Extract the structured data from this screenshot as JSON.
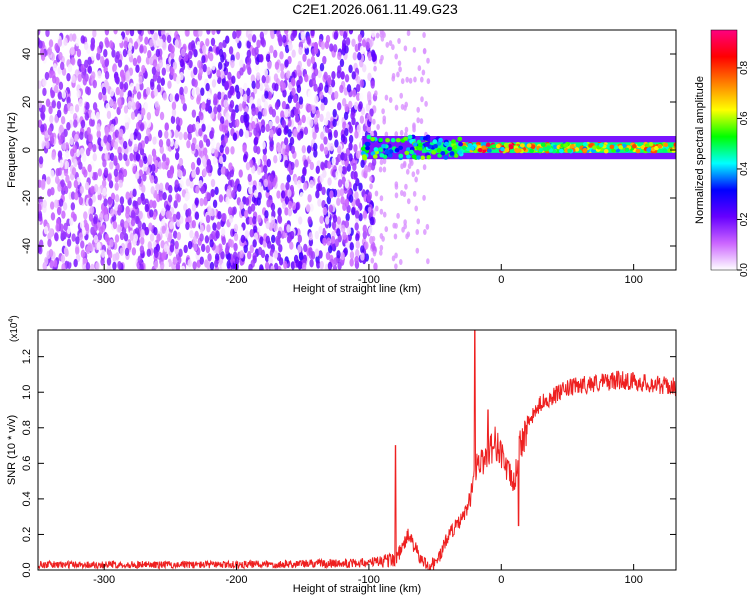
{
  "title": "C2E1.2026.061.11.49.G23",
  "chart_data": [
    {
      "type": "heatmap",
      "xlabel": "Height of straight line (km)",
      "ylabel": "Frequency (Hz)",
      "xlim": [
        -350,
        132
      ],
      "ylim": [
        -50,
        50
      ],
      "x_ticks": [
        -300,
        -200,
        -100,
        0,
        100
      ],
      "x_tick_labels": [
        "-300",
        "-200",
        "-100",
        "0",
        "100"
      ],
      "y_ticks": [
        -40,
        -20,
        0,
        20,
        40
      ],
      "y_tick_labels": [
        "-40",
        "-20",
        "0",
        "20",
        "40"
      ],
      "colorbar": {
        "label": "Normalized spectral amplitude",
        "range": [
          0,
          0.95
        ],
        "ticks": [
          0,
          0.2,
          0.4,
          0.6,
          0.8
        ],
        "tick_labels": [
          "0.0",
          "0.2",
          "0.4",
          "0.6",
          "0.8"
        ],
        "colors": [
          "#ffffff",
          "#cc66ff",
          "#6600ff",
          "#0000ff",
          "#00ffff",
          "#00ff00",
          "#ffff00",
          "#ff8000",
          "#ff0000",
          "#ff0080"
        ]
      },
      "features": {
        "noise_region_x": [
          -350,
          -100
        ],
        "signal_start_x": -105,
        "signal_center_freq": 1,
        "signal_band_halfwidth": 4
      }
    },
    {
      "type": "line",
      "xlabel": "Height of straight line (km)",
      "ylabel": "SNR (10 * v/v)",
      "y_multiplier": "(x10",
      "y_multiplier_exp": "4",
      "y_multiplier_close": ")",
      "xlim": [
        -350,
        132
      ],
      "ylim": [
        0,
        1.35
      ],
      "x_ticks": [
        -300,
        -200,
        -100,
        0,
        100
      ],
      "x_tick_labels": [
        "-300",
        "-200",
        "-100",
        "0",
        "100"
      ],
      "y_ticks": [
        0,
        0.2,
        0.4,
        0.6,
        0.8,
        1.0,
        1.2
      ],
      "y_tick_labels": [
        "0.0",
        "0.2",
        "0.4",
        "0.6",
        "0.8",
        "1.0",
        "1.2"
      ],
      "line_color": "#ee2020",
      "x": [
        -350,
        -300,
        -200,
        -100,
        -90,
        -80,
        -75,
        -70,
        -65,
        -60,
        -55,
        -50,
        -45,
        -40,
        -35,
        -30,
        -25,
        -22,
        -20,
        -18,
        -15,
        -10,
        -5,
        0,
        5,
        10,
        12,
        15,
        20,
        25,
        30,
        40,
        50,
        60,
        70,
        80,
        90,
        100,
        110,
        120,
        132
      ],
      "y": [
        0.03,
        0.03,
        0.03,
        0.04,
        0.05,
        0.06,
        0.12,
        0.2,
        0.12,
        0.05,
        0.02,
        0.04,
        0.1,
        0.2,
        0.24,
        0.28,
        0.36,
        0.45,
        0.55,
        0.62,
        0.6,
        0.66,
        0.72,
        0.66,
        0.55,
        0.48,
        0.6,
        0.72,
        0.82,
        0.88,
        0.94,
        0.98,
        1.02,
        1.04,
        1.05,
        1.06,
        1.07,
        1.06,
        1.05,
        1.04,
        1.03
      ],
      "spikes": [
        {
          "x": -80,
          "y": 0.7
        },
        {
          "x": -20,
          "y": 1.36
        },
        {
          "x": -10,
          "y": 0.9
        },
        {
          "x": 13,
          "y": 0.25
        }
      ]
    }
  ]
}
